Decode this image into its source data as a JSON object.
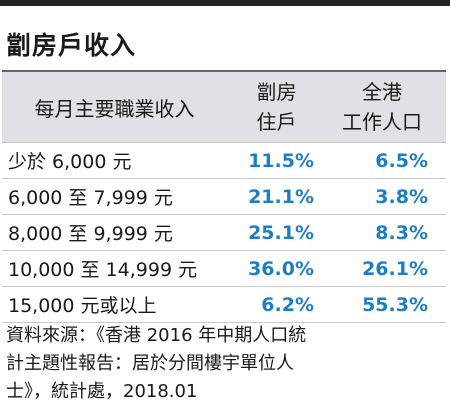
{
  "title": "劏房戶收入",
  "table": {
    "header": {
      "col0": "每月主要職業收入",
      "col1_lines": [
        "劏房",
        "住戶"
      ],
      "col2_lines": [
        "全港",
        "工作人口"
      ]
    },
    "rows": [
      {
        "label": "少於 6,000 元",
        "subdivided": "11.5%",
        "overall": "6.5%"
      },
      {
        "label": "6,000 至 7,999 元",
        "subdivided": "21.1%",
        "overall": "3.8%"
      },
      {
        "label": "8,000 至 9,999 元",
        "subdivided": "25.1%",
        "overall": "8.3%"
      },
      {
        "label": "10,000 至 14,999 元",
        "subdivided": "36.0%",
        "overall": "26.1%"
      },
      {
        "label": "15,000 元或以上",
        "subdivided": "6.2%",
        "overall": "55.3%"
      }
    ]
  },
  "source": {
    "lines": [
      "資料來源：《香港 2016 年中期人口統",
      "計主題性報告：居於分間樓宇單位人",
      "士》，統計處，2018.01"
    ]
  },
  "colors": {
    "accent": "#1f7ec2",
    "header_bg": "#dfe1e6",
    "rule": "#222222"
  }
}
